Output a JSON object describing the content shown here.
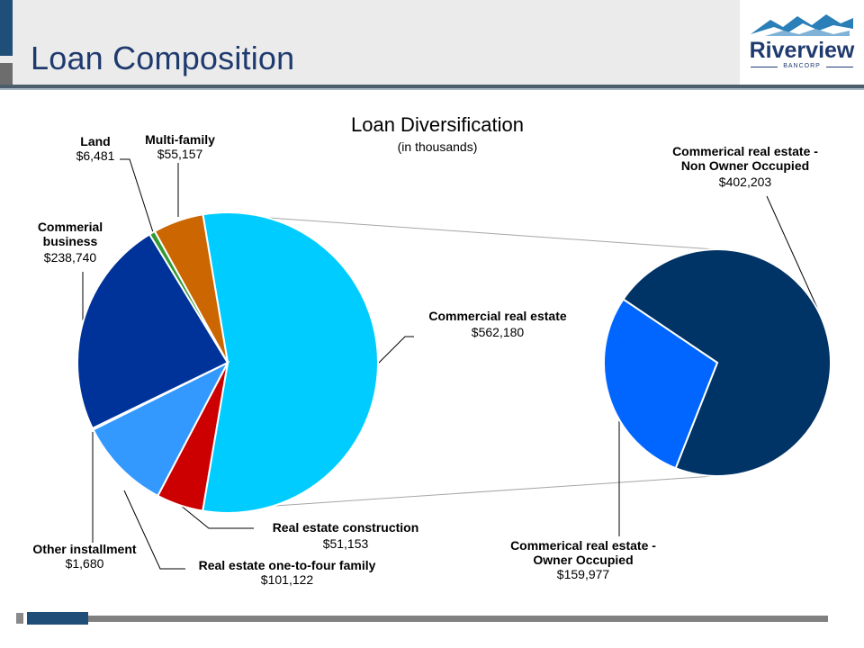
{
  "page": {
    "title": "Loan Composition",
    "logo_name": "Riverview",
    "logo_sub": "BANCORP"
  },
  "chart_data": [
    {
      "type": "pie",
      "title": "Loan Diversification",
      "subtitle": "(in thousands)",
      "slices": [
        {
          "key": "cre",
          "name": "Commercial real estate",
          "value": 562180,
          "label": "$562,180",
          "color": "#00ccff"
        },
        {
          "key": "construction",
          "name": "Real estate construction",
          "value": 51153,
          "label": "$51,153",
          "color": "#cc0000"
        },
        {
          "key": "one_to_four",
          "name": "Real estate one-to-four family",
          "value": 101122,
          "label": "$101,122",
          "color": "#3399ff"
        },
        {
          "key": "other_installment",
          "name": "Other installment",
          "value": 1680,
          "label": "$1,680",
          "color": "#5a5a5a"
        },
        {
          "key": "commercial_business",
          "name": "Commerial business",
          "value": 238740,
          "label": "$238,740",
          "color": "#003399"
        },
        {
          "key": "land",
          "name": "Land",
          "value": 6481,
          "label": "$6,481",
          "color": "#339933"
        },
        {
          "key": "multifamily",
          "name": "Multi-family",
          "value": 55157,
          "label": "$55,157",
          "color": "#cc6600"
        }
      ]
    },
    {
      "type": "pie",
      "title": "",
      "slices": [
        {
          "key": "non_owner",
          "name": "Commerical real estate - Non Owner Occupied",
          "value": 402203,
          "label": "$402,203",
          "color": "#003366"
        },
        {
          "key": "owner",
          "name": "Commerical real estate - Owner Occupied",
          "value": 159977,
          "label": "$159,977",
          "color": "#0066ff"
        }
      ]
    }
  ],
  "labels": {
    "land": {
      "name": "Land",
      "value": "$6,481"
    },
    "multifamily": {
      "name": "Multi-family",
      "value": "$55,157"
    },
    "commercial_business": {
      "name_l1": "Commerial",
      "name_l2": "business",
      "value": "$238,740"
    },
    "cre": {
      "name": "Commercial real estate",
      "value": "$562,180"
    },
    "construction": {
      "name": "Real estate construction",
      "value": "$51,153"
    },
    "one_to_four": {
      "name": "Real estate one-to-four family",
      "value": "$101,122"
    },
    "other_installment": {
      "name": "Other installment",
      "value": "$1,680"
    },
    "non_owner": {
      "name_l1": "Commerical real estate -",
      "name_l2": "Non Owner Occupied",
      "value": "$402,203"
    },
    "owner": {
      "name_l1": "Commerical real estate -",
      "name_l2": "Owner Occupied",
      "value": "$159,977"
    }
  },
  "colors": {
    "title": "#1f3a6e",
    "header_bg": "#ebebeb",
    "accent": "#1f4e79"
  }
}
